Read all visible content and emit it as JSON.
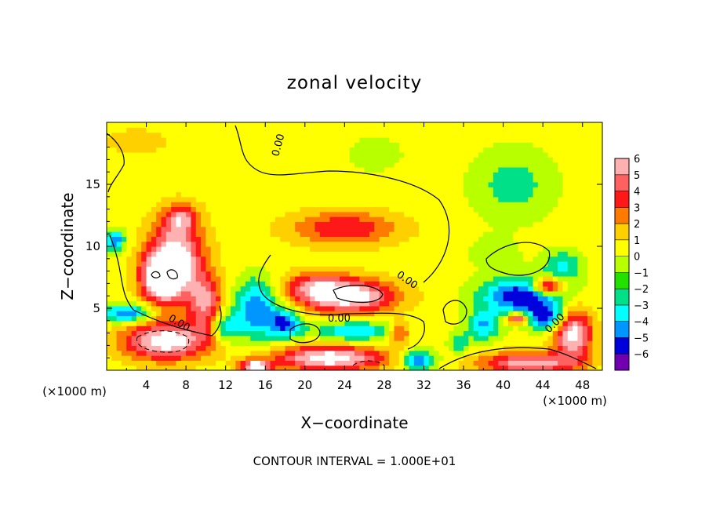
{
  "chart_data": {
    "type": "heatmap",
    "title": "zonal velocity",
    "xlabel": "X−coordinate",
    "ylabel": "Z−coordinate",
    "x_unit_left": "(×1000 m)",
    "x_unit_right": "(×1000 m)",
    "footer": "CONTOUR INTERVAL = 1.000E+01",
    "xlim": [
      0,
      50
    ],
    "ylim": [
      0,
      20
    ],
    "x_ticks": [
      4,
      8,
      12,
      16,
      20,
      24,
      28,
      32,
      36,
      40,
      44,
      48
    ],
    "y_ticks": [
      5,
      10,
      15
    ],
    "contour_label": "0.00",
    "colorbar": {
      "ticks": [
        "6",
        "5",
        "4",
        "3",
        "2",
        "1",
        "0",
        "−1",
        "−2",
        "−3",
        "−4",
        "−5",
        "−6"
      ],
      "values": [
        6,
        5,
        4,
        3,
        2,
        1,
        0,
        -1,
        -2,
        -3,
        -4,
        -5,
        -6
      ],
      "colors": [
        "#ffb0b0",
        "#ff6060",
        "#ff1818",
        "#ff7a00",
        "#ffd000",
        "#ffff00",
        "#b8ff00",
        "#22e000",
        "#00e088",
        "#00ffff",
        "#0096ff",
        "#0000dd",
        "#7000b0"
      ]
    },
    "background_value": 0.5,
    "features": [
      {
        "kind": "blob",
        "x": 7.0,
        "z": 9.0,
        "rx": 3.2,
        "rz": 3.6,
        "value": 7
      },
      {
        "kind": "blob",
        "x": 5.5,
        "z": 7.5,
        "rx": 2.4,
        "rz": 2.2,
        "value": 7
      },
      {
        "kind": "blob",
        "x": 10.0,
        "z": 5.5,
        "rx": 2.0,
        "rz": 2.6,
        "value": 5
      },
      {
        "kind": "blob",
        "x": 7.5,
        "z": 12.3,
        "rx": 2.0,
        "rz": 1.3,
        "value": 4
      },
      {
        "kind": "blob",
        "x": 24.0,
        "z": 11.5,
        "rx": 6.5,
        "rz": 1.6,
        "value": 4
      },
      {
        "kind": "blob",
        "x": 24.5,
        "z": 6.0,
        "rx": 5.5,
        "rz": 1.6,
        "value": 7
      },
      {
        "kind": "blob",
        "x": 21.0,
        "z": 6.8,
        "rx": 3.5,
        "rz": 1.4,
        "value": 4
      },
      {
        "kind": "blob",
        "x": 29.5,
        "z": 3.0,
        "rx": 1.3,
        "rz": 1.0,
        "value": 4
      },
      {
        "kind": "blob",
        "x": 22.5,
        "z": 1.0,
        "rx": 6.5,
        "rz": 1.2,
        "value": 7
      },
      {
        "kind": "blob",
        "x": 15.0,
        "z": 0.3,
        "rx": 1.8,
        "rz": 0.7,
        "value": 7
      },
      {
        "kind": "blob",
        "x": 42.5,
        "z": 0.6,
        "rx": 5.5,
        "rz": 1.0,
        "value": 6
      },
      {
        "kind": "blob",
        "x": 47.0,
        "z": 3.0,
        "rx": 2.2,
        "rz": 2.4,
        "value": 7
      },
      {
        "kind": "blob",
        "x": 6.0,
        "z": 2.4,
        "rx": 5.0,
        "rz": 1.8,
        "value": 7
      },
      {
        "kind": "blob",
        "x": 15.0,
        "z": 5.0,
        "rx": 2.5,
        "rz": 2.8,
        "value": -4
      },
      {
        "kind": "blob",
        "x": 18.0,
        "z": 3.8,
        "rx": 2.0,
        "rz": 1.4,
        "value": -4
      },
      {
        "kind": "blob",
        "x": 25.0,
        "z": 3.2,
        "rx": 5.0,
        "rz": 1.0,
        "value": -3
      },
      {
        "kind": "blob",
        "x": 12.0,
        "z": 3.5,
        "rx": 1.6,
        "rz": 1.4,
        "value": -3
      },
      {
        "kind": "blob",
        "x": 2.0,
        "z": 4.6,
        "rx": 3.0,
        "rz": 0.9,
        "value": -4
      },
      {
        "kind": "blob",
        "x": 0.8,
        "z": 10.5,
        "rx": 1.2,
        "rz": 1.0,
        "value": -4
      },
      {
        "kind": "blob",
        "x": 42.0,
        "z": 6.0,
        "rx": 5.0,
        "rz": 1.8,
        "value": -5
      },
      {
        "kind": "blob",
        "x": 44.5,
        "z": 4.2,
        "rx": 2.5,
        "rz": 1.2,
        "value": -4
      },
      {
        "kind": "blob",
        "x": 38.0,
        "z": 3.6,
        "rx": 2.0,
        "rz": 1.4,
        "value": -3
      },
      {
        "kind": "blob",
        "x": 31.5,
        "z": 0.8,
        "rx": 2.0,
        "rz": 1.0,
        "value": -4
      },
      {
        "kind": "blob",
        "x": 35.5,
        "z": 2.2,
        "rx": 1.2,
        "rz": 1.0,
        "value": -2
      },
      {
        "kind": "blob",
        "x": 41.0,
        "z": 15.0,
        "rx": 5.0,
        "rz": 3.5,
        "value": -1.5
      },
      {
        "kind": "blob",
        "x": 39.0,
        "z": 9.5,
        "rx": 3.0,
        "rz": 1.5,
        "value": -0.8
      },
      {
        "kind": "blob",
        "x": 46.0,
        "z": 8.5,
        "rx": 2.5,
        "rz": 1.5,
        "value": -2
      },
      {
        "kind": "blob",
        "x": 44.5,
        "z": 6.8,
        "rx": 1.8,
        "rz": 0.8,
        "value": 7
      },
      {
        "kind": "blob",
        "x": 41.5,
        "z": 4.2,
        "rx": 1.3,
        "rz": 0.5,
        "value": 7
      },
      {
        "kind": "blob",
        "x": 3.0,
        "z": 18.5,
        "rx": 6.0,
        "rz": 2.0,
        "value": 1.2
      },
      {
        "kind": "blob",
        "x": 27.0,
        "z": 17.5,
        "rx": 4.0,
        "rz": 2.0,
        "value": -0.5
      },
      {
        "kind": "blob",
        "x": 20.0,
        "z": 18.5,
        "rx": 5.0,
        "rz": 2.0,
        "value": 0.8
      }
    ]
  }
}
